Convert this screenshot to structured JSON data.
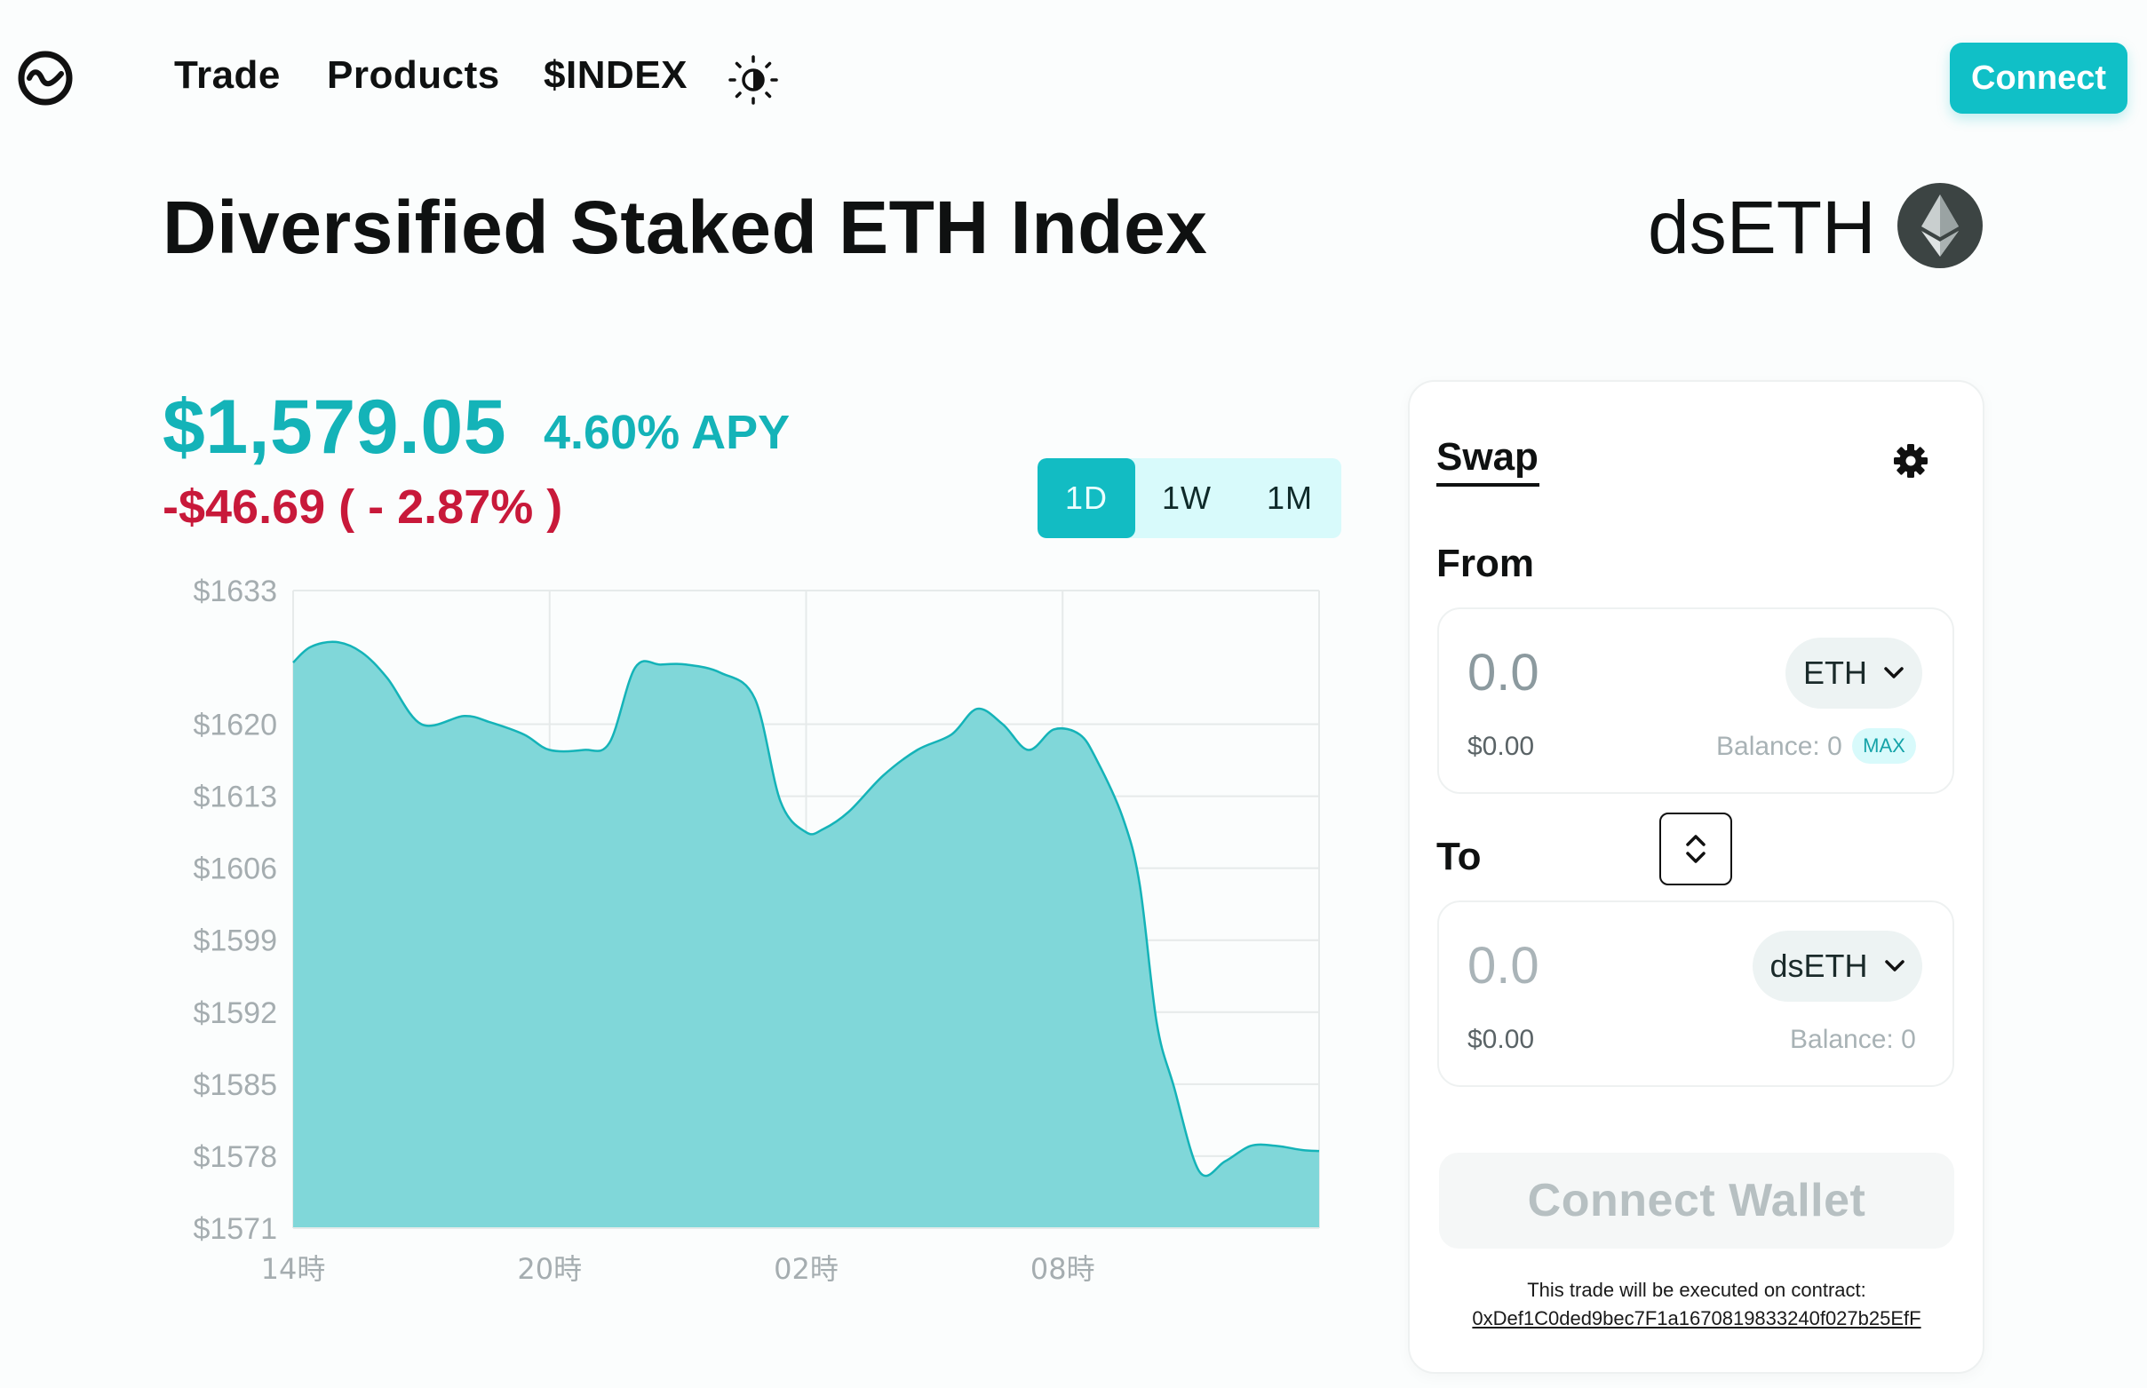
{
  "nav": {
    "items": [
      "Trade",
      "Products",
      "$INDEX"
    ],
    "connect_label": "Connect"
  },
  "header": {
    "title": "Diversified Staked ETH Index",
    "symbol": "dsETH"
  },
  "price": {
    "value": "$1,579.05",
    "apy": "4.60% APY",
    "change": "-$46.69 ( - 2.87% )"
  },
  "periods": [
    "1D",
    "1W",
    "1M"
  ],
  "active_period": "1D",
  "chart_data": {
    "type": "area",
    "title": "",
    "xlabel": "",
    "ylabel": "",
    "x_ticks": [
      "14時",
      "20時",
      "02時",
      "08時"
    ],
    "y_ticks": [
      "$1633",
      "$1620",
      "$1613",
      "$1606",
      "$1599",
      "$1592",
      "$1585",
      "$1578",
      "$1571"
    ],
    "ylim": [
      1571,
      1633
    ],
    "grid": true,
    "color": "#14b3b8",
    "series": [
      {
        "x": [
          14.0,
          14.4,
          15.0,
          15.6,
          16.2,
          17.0,
          18.0,
          18.6,
          19.4,
          20.0,
          20.8,
          21.4,
          22.0,
          22.6,
          23.2,
          24.0,
          24.8,
          25.4,
          26.0,
          26.4,
          27.0,
          27.8,
          28.6,
          29.4,
          30.0,
          30.6,
          31.2,
          31.8,
          32.4,
          32.8,
          33.4,
          33.8,
          34.2,
          34.6,
          35.2,
          35.8,
          36.4,
          37.0,
          37.6,
          38.0
        ],
        "y": [
          1626.0,
          1627.5,
          1628.0,
          1627.0,
          1624.5,
          1620.0,
          1620.8,
          1620.2,
          1619.0,
          1617.5,
          1617.5,
          1618.2,
          1625.5,
          1625.8,
          1625.8,
          1625.0,
          1622.5,
          1612.5,
          1609.5,
          1609.8,
          1611.5,
          1615.0,
          1617.5,
          1619.0,
          1621.5,
          1620.0,
          1617.5,
          1619.5,
          1619.0,
          1616.5,
          1611.0,
          1604.5,
          1591.0,
          1584.8,
          1576.5,
          1577.5,
          1579.0,
          1579.0,
          1578.6,
          1578.5
        ]
      }
    ]
  },
  "swap": {
    "title": "Swap",
    "from_label": "From",
    "to_label": "To",
    "from": {
      "amount": "0.0",
      "usd": "$0.00",
      "token": "ETH",
      "balance": "Balance: 0",
      "max": "MAX"
    },
    "to": {
      "amount": "0.0",
      "usd": "$0.00",
      "token": "dsETH",
      "balance": "Balance: 0"
    },
    "wallet_button": "Connect Wallet",
    "contract_note": "This trade will be executed on contract:",
    "contract_address": "0xDef1C0ded9bec7F1a1670819833240f027b25EfF"
  }
}
